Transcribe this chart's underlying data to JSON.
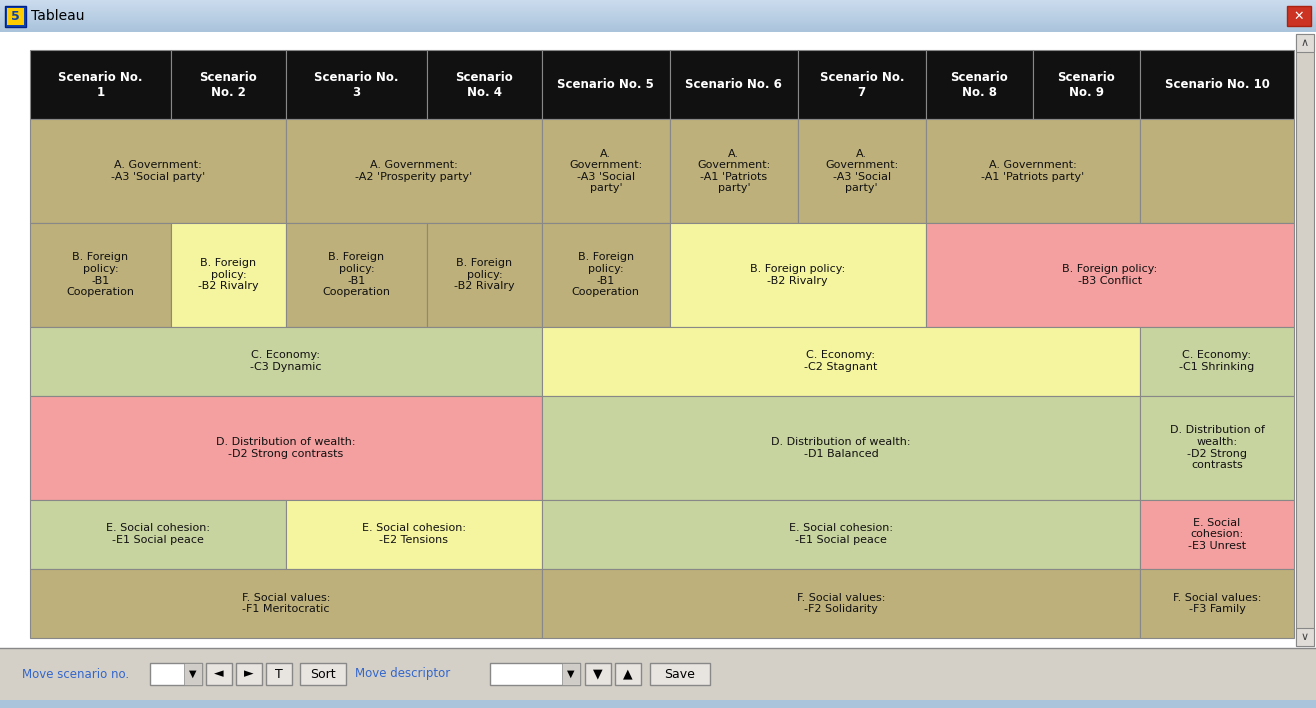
{
  "window_bg": "#d4d0c8",
  "title_bar_bg_top": "#aac4dc",
  "title_bar_bg_bot": "#c8dce8",
  "title_text": "Tableau",
  "header_color": "#111111",
  "header_text_color": "#ffffff",
  "border_color": "#888888",
  "col_headers": [
    "Scenario No.\n1",
    "Scenario\nNo. 2",
    "Scenario No.\n3",
    "Scenario\nNo. 4",
    "Scenario No. 5",
    "Scenario No. 6",
    "Scenario No.\n7",
    "Scenario\nNo. 8",
    "Scenario\nNo. 9",
    "Scenario No. 10"
  ],
  "col_widths_rel": [
    108,
    88,
    108,
    88,
    98,
    98,
    98,
    82,
    82,
    118
  ],
  "row_heights_rel": [
    52,
    78,
    78,
    52,
    78,
    52,
    52
  ],
  "rows": [
    {
      "merges": [
        {
          "start": 0,
          "end": 2,
          "text": "A. Government:\n-A3 'Social party'",
          "color": "#bdb07a"
        },
        {
          "start": 2,
          "end": 4,
          "text": "A. Government:\n-A2 'Prosperity party'",
          "color": "#bdb07a"
        },
        {
          "start": 4,
          "end": 5,
          "text": "A.\nGovernment:\n-A3 'Social\nparty'",
          "color": "#bdb07a"
        },
        {
          "start": 5,
          "end": 6,
          "text": "A.\nGovernment:\n-A1 'Patriots\nparty'",
          "color": "#bdb07a"
        },
        {
          "start": 6,
          "end": 7,
          "text": "A.\nGovernment:\n-A3 'Social\nparty'",
          "color": "#bdb07a"
        },
        {
          "start": 7,
          "end": 9,
          "text": "A. Government:\n-A1 'Patriots party'",
          "color": "#bdb07a"
        },
        {
          "start": 9,
          "end": 10,
          "text": "",
          "color": "#bdb07a"
        }
      ]
    },
    {
      "merges": [
        {
          "start": 0,
          "end": 1,
          "text": "B. Foreign\npolicy:\n-B1\nCooperation",
          "color": "#bdb07a"
        },
        {
          "start": 1,
          "end": 2,
          "text": "B. Foreign\npolicy:\n-B2 Rivalry",
          "color": "#f5f5a0"
        },
        {
          "start": 2,
          "end": 3,
          "text": "B. Foreign\npolicy:\n-B1\nCooperation",
          "color": "#bdb07a"
        },
        {
          "start": 3,
          "end": 4,
          "text": "B. Foreign\npolicy:\n-B2 Rivalry",
          "color": "#bdb07a"
        },
        {
          "start": 4,
          "end": 5,
          "text": "B. Foreign\npolicy:\n-B1\nCooperation",
          "color": "#bdb07a"
        },
        {
          "start": 5,
          "end": 7,
          "text": "B. Foreign policy:\n-B2 Rivalry",
          "color": "#f5f5a0"
        },
        {
          "start": 7,
          "end": 10,
          "text": "B. Foreign policy:\n-B3 Conflict",
          "color": "#f5a0a0"
        }
      ]
    },
    {
      "merges": [
        {
          "start": 0,
          "end": 4,
          "text": "C. Economy:\n-C3 Dynamic",
          "color": "#c8d4a0"
        },
        {
          "start": 4,
          "end": 9,
          "text": "C. Economy:\n-C2 Stagnant",
          "color": "#f5f5a0"
        },
        {
          "start": 9,
          "end": 10,
          "text": "C. Economy:\n-C1 Shrinking",
          "color": "#c8d4a0"
        }
      ]
    },
    {
      "merges": [
        {
          "start": 0,
          "end": 4,
          "text": "D. Distribution of wealth:\n-D2 Strong contrasts",
          "color": "#f5a0a0"
        },
        {
          "start": 4,
          "end": 9,
          "text": "D. Distribution of wealth:\n-D1 Balanced",
          "color": "#c8d4a0"
        },
        {
          "start": 9,
          "end": 10,
          "text": "D. Distribution of\nwealth:\n-D2 Strong\ncontrasts",
          "color": "#c8d4a0"
        }
      ]
    },
    {
      "merges": [
        {
          "start": 0,
          "end": 2,
          "text": "E. Social cohesion:\n-E1 Social peace",
          "color": "#c8d4a0"
        },
        {
          "start": 2,
          "end": 4,
          "text": "E. Social cohesion:\n-E2 Tensions",
          "color": "#f5f5a0"
        },
        {
          "start": 4,
          "end": 9,
          "text": "E. Social cohesion:\n-E1 Social peace",
          "color": "#c8d4a0"
        },
        {
          "start": 9,
          "end": 10,
          "text": "E. Social\ncohesion:\n-E3 Unrest",
          "color": "#f5a0a0"
        }
      ]
    },
    {
      "merges": [
        {
          "start": 0,
          "end": 4,
          "text": "F. Social values:\n-F1 Meritocratic",
          "color": "#bdb07a"
        },
        {
          "start": 4,
          "end": 9,
          "text": "F. Social values:\n-F2 Solidarity",
          "color": "#bdb07a"
        },
        {
          "start": 9,
          "end": 10,
          "text": "F. Social values:\n-F3 Family",
          "color": "#bdb07a"
        }
      ]
    }
  ],
  "bottom_text1": "Move scenario no.",
  "bottom_text2": "Move descriptor",
  "btn_sort": "Sort",
  "btn_save": "Save",
  "btn_t": "T"
}
